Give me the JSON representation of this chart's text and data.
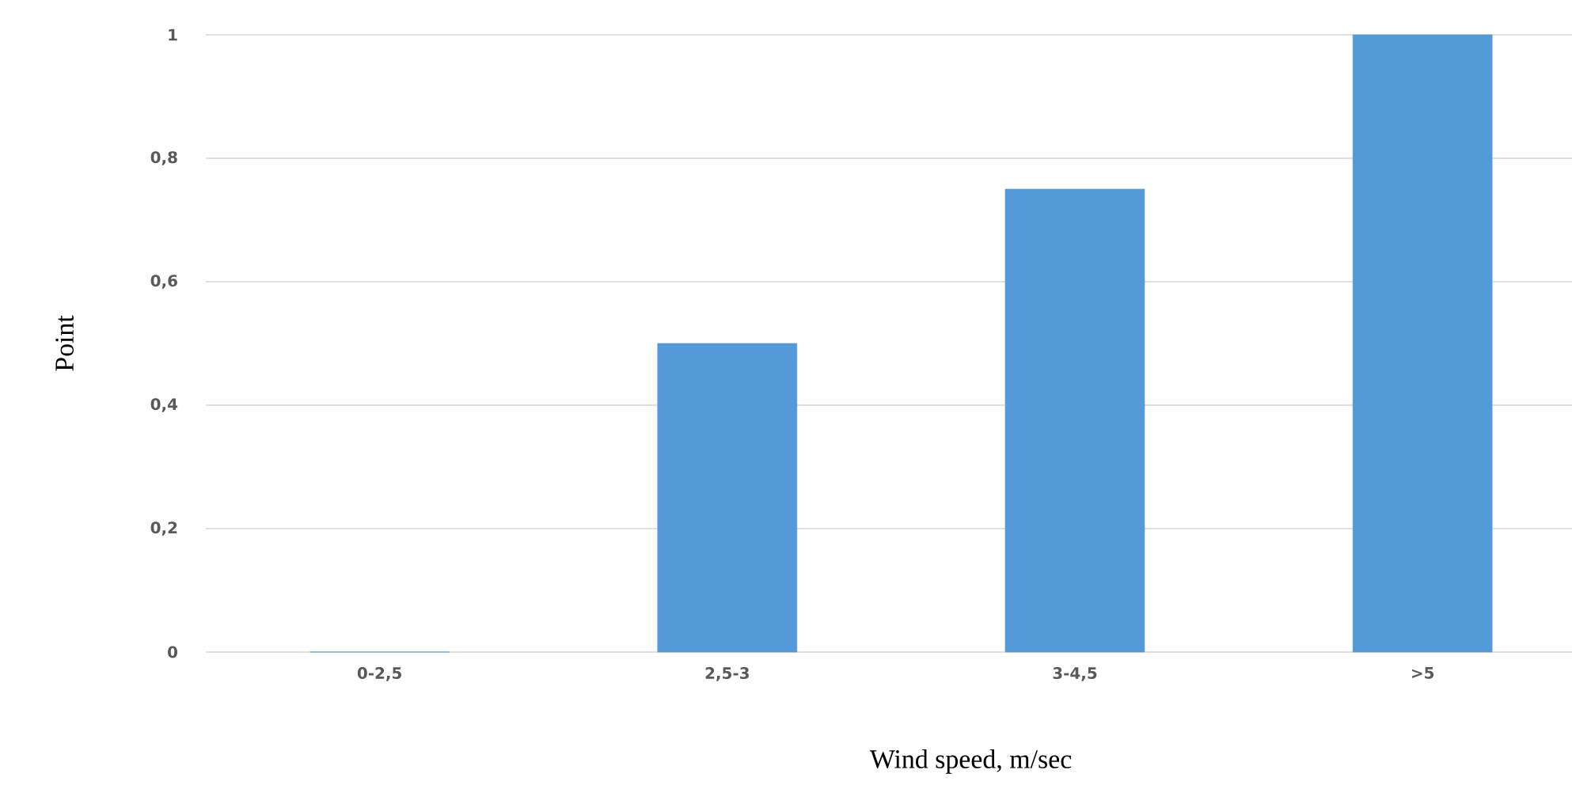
{
  "chart_data": {
    "type": "bar",
    "xlabel": "Wind speed, m/sec",
    "ylabel": "Point",
    "categories": [
      "0-2,5",
      "2,5-3",
      "3-4,5",
      ">5"
    ],
    "values": [
      0,
      0.5,
      0.75,
      1
    ],
    "color": "#5499d8",
    "ylim": [
      0,
      1
    ],
    "yticks": [
      0,
      {
        "value": 0.2,
        "label": "0,2"
      },
      {
        "value": 0.4,
        "label": "0,4"
      },
      {
        "value": 0.6,
        "label": "0,6"
      },
      {
        "value": 0.8,
        "label": "0,8"
      },
      1
    ],
    "grid": "y"
  }
}
